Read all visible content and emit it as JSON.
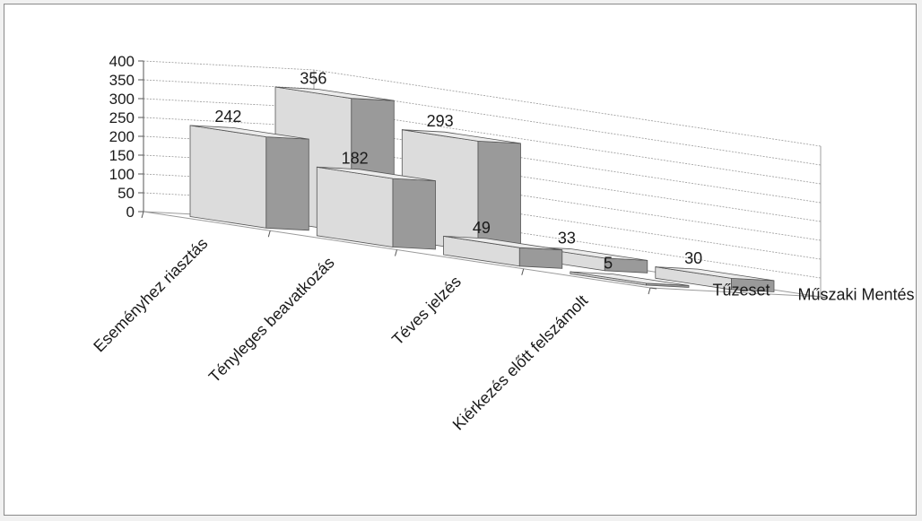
{
  "chart_data": {
    "type": "bar",
    "title": "",
    "ylim": [
      0,
      400
    ],
    "y_ticks": [
      "0",
      "50",
      "100",
      "150",
      "200",
      "250",
      "300",
      "350",
      "400"
    ],
    "categories": [
      "Eseményhez riasztás",
      "Tényleges beavatkozás",
      "Téves jelzés",
      "Kiérkezés előtt felszámolt"
    ],
    "series": [
      {
        "name": "Tűzeset",
        "values": [
          242,
          182,
          49,
          5
        ]
      },
      {
        "name": "Műszaki Mentés",
        "values": [
          356,
          293,
          33,
          30
        ]
      }
    ],
    "data_labels": [
      [
        "242",
        "182",
        "49",
        "5"
      ],
      [
        "356",
        "293",
        "33",
        "30"
      ]
    ],
    "colors": {
      "front": "#dcdcdc",
      "side": "#9a9a9a",
      "top": "#ececec",
      "edge": "#555555",
      "grid": "#9a9a9a"
    },
    "grid": true
  }
}
